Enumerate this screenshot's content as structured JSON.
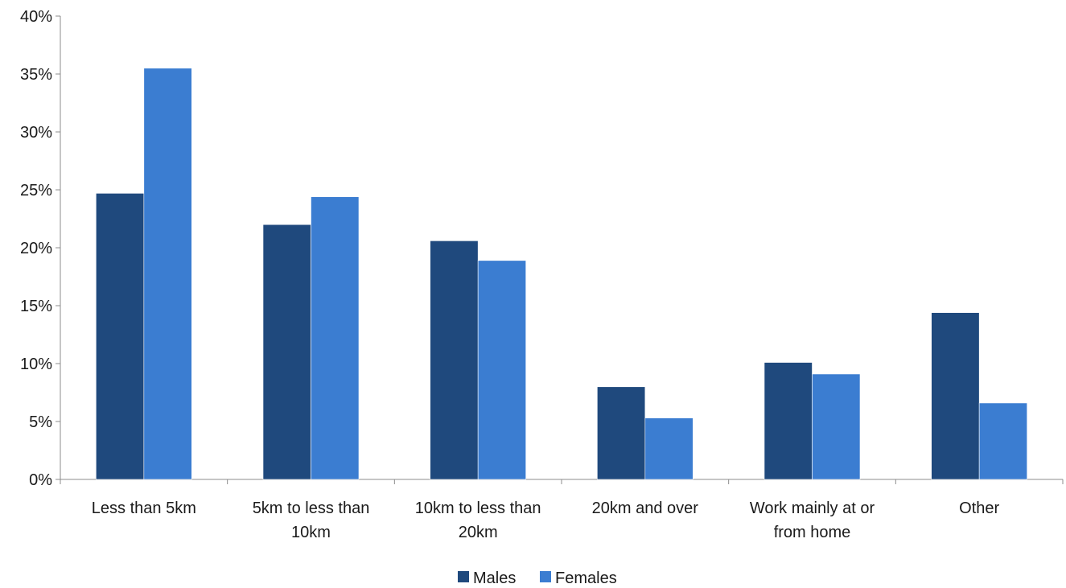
{
  "chart_data": {
    "type": "bar",
    "categories": [
      [
        "Less than 5km"
      ],
      [
        "5km to less than",
        "10km"
      ],
      [
        "10km to less than",
        "20km"
      ],
      [
        "20km and over"
      ],
      [
        "Work mainly at or",
        "from home"
      ],
      [
        "Other"
      ]
    ],
    "series": [
      {
        "name": "Males",
        "color": "#1f497d",
        "values": [
          24.7,
          22.0,
          20.6,
          8.0,
          10.1,
          14.4
        ]
      },
      {
        "name": "Females",
        "color": "#3b7dd1",
        "values": [
          35.5,
          24.4,
          18.9,
          5.3,
          9.1,
          6.6
        ]
      }
    ],
    "ylim": [
      0,
      40
    ],
    "yticks": [
      "0%",
      "5%",
      "10%",
      "15%",
      "20%",
      "25%",
      "30%",
      "35%",
      "40%"
    ],
    "grid": false,
    "legend_position": "bottom"
  }
}
